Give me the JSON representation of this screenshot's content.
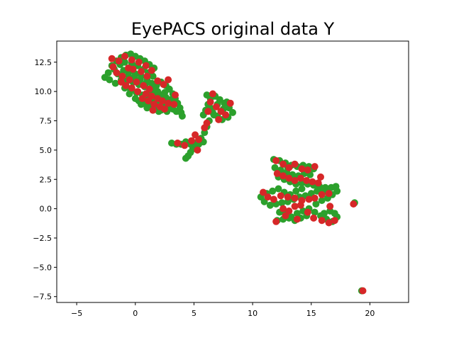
{
  "chart_data": {
    "type": "scatter",
    "title": "EyePACS original data Y",
    "xlabel": "",
    "ylabel": "",
    "xlim": [
      -6.7,
      23.3
    ],
    "ylim": [
      -8.0,
      14.3
    ],
    "x_ticks": [
      -5,
      0,
      5,
      10,
      15,
      20
    ],
    "x_tick_labels": [
      "−5",
      "0",
      "5",
      "10",
      "15",
      "20"
    ],
    "y_ticks": [
      -7.5,
      -5.0,
      -2.5,
      0.0,
      2.5,
      5.0,
      7.5,
      10.0,
      12.5
    ],
    "y_tick_labels": [
      "−7.5",
      "−5.0",
      "−2.5",
      "0.0",
      "2.5",
      "5.0",
      "7.5",
      "10.0",
      "12.5"
    ],
    "grid": false,
    "legend": "none",
    "colors": {
      "green": "#2ca02c",
      "red": "#d62728"
    },
    "series": [
      {
        "color": "green",
        "points": [
          [
            -2.6,
            11.2
          ],
          [
            -2.3,
            11.6
          ],
          [
            -2.0,
            12.2
          ],
          [
            -1.6,
            12.6
          ],
          [
            -1.2,
            12.9
          ],
          [
            -0.8,
            13.1
          ],
          [
            -0.4,
            13.2
          ],
          [
            0.0,
            13.0
          ],
          [
            0.4,
            12.8
          ],
          [
            0.8,
            12.6
          ],
          [
            1.2,
            12.3
          ],
          [
            1.6,
            12.0
          ],
          [
            -1.8,
            11.9
          ],
          [
            -1.3,
            12.3
          ],
          [
            -0.9,
            12.5
          ],
          [
            -0.3,
            12.4
          ],
          [
            0.2,
            12.2
          ],
          [
            0.7,
            11.9
          ],
          [
            1.1,
            11.6
          ],
          [
            1.5,
            11.3
          ],
          [
            -1.5,
            11.5
          ],
          [
            -1.0,
            11.8
          ],
          [
            -0.5,
            11.7
          ],
          [
            0.0,
            11.5
          ],
          [
            0.5,
            11.3
          ],
          [
            1.0,
            11.0
          ],
          [
            1.4,
            10.7
          ],
          [
            1.8,
            10.5
          ],
          [
            2.2,
            10.8
          ],
          [
            2.6,
            10.5
          ],
          [
            -1.2,
            11.0
          ],
          [
            -0.7,
            10.9
          ],
          [
            -0.2,
            10.8
          ],
          [
            0.3,
            10.6
          ],
          [
            0.8,
            10.4
          ],
          [
            1.3,
            10.1
          ],
          [
            1.7,
            9.9
          ],
          [
            2.1,
            9.7
          ],
          [
            2.5,
            9.9
          ],
          [
            2.9,
            10.2
          ],
          [
            3.2,
            9.8
          ],
          [
            3.4,
            9.4
          ],
          [
            3.6,
            9.0
          ],
          [
            3.8,
            8.6
          ],
          [
            3.9,
            8.2
          ],
          [
            4.0,
            7.9
          ],
          [
            -0.9,
            10.3
          ],
          [
            -0.4,
            10.1
          ],
          [
            0.1,
            9.9
          ],
          [
            0.6,
            9.7
          ],
          [
            1.1,
            9.5
          ],
          [
            1.6,
            9.3
          ],
          [
            2.0,
            9.1
          ],
          [
            2.4,
            8.9
          ],
          [
            2.8,
            8.7
          ],
          [
            3.2,
            8.5
          ],
          [
            0.3,
            9.2
          ],
          [
            0.8,
            9.0
          ],
          [
            1.3,
            8.8
          ],
          [
            1.8,
            8.6
          ],
          [
            2.2,
            8.4
          ],
          [
            2.7,
            8.3
          ],
          [
            3.1,
            8.6
          ],
          [
            3.5,
            8.3
          ],
          [
            -0.5,
            9.8
          ],
          [
            0.0,
            9.4
          ],
          [
            0.5,
            8.9
          ],
          [
            1.0,
            8.6
          ],
          [
            1.5,
            8.4
          ],
          [
            2.0,
            8.3
          ],
          [
            -2.2,
            11.0
          ],
          [
            -1.7,
            10.7
          ],
          [
            3.0,
            9.3
          ],
          [
            2.6,
            9.5
          ],
          [
            1.9,
            10.0
          ],
          [
            1.5,
            10.3
          ],
          [
            0.9,
            10.7
          ],
          [
            0.4,
            11.0
          ],
          [
            -0.1,
            11.2
          ],
          [
            -0.6,
            11.4
          ],
          [
            3.1,
            5.6
          ],
          [
            3.5,
            5.5
          ],
          [
            3.9,
            5.5
          ],
          [
            4.3,
            5.7
          ],
          [
            4.7,
            5.5
          ],
          [
            5.0,
            5.3
          ],
          [
            5.4,
            5.5
          ],
          [
            5.8,
            5.7
          ],
          [
            4.3,
            4.3
          ],
          [
            4.5,
            4.5
          ],
          [
            4.7,
            4.8
          ],
          [
            4.9,
            5.1
          ],
          [
            5.2,
            5.6
          ],
          [
            5.6,
            6.0
          ],
          [
            5.9,
            6.5
          ],
          [
            6.1,
            7.0
          ],
          [
            6.3,
            7.5
          ],
          [
            5.8,
            8.0
          ],
          [
            6.0,
            8.4
          ],
          [
            6.2,
            8.9
          ],
          [
            6.4,
            9.4
          ],
          [
            6.8,
            9.6
          ],
          [
            7.2,
            9.3
          ],
          [
            7.6,
            9.0
          ],
          [
            8.0,
            8.6
          ],
          [
            8.3,
            8.2
          ],
          [
            7.9,
            7.8
          ],
          [
            7.4,
            7.6
          ],
          [
            7.0,
            7.9
          ],
          [
            6.6,
            8.2
          ],
          [
            6.4,
            8.6
          ],
          [
            7.0,
            8.9
          ],
          [
            7.5,
            8.5
          ],
          [
            6.1,
            9.7
          ],
          [
            6.7,
            8.0
          ],
          [
            7.8,
            9.1
          ],
          [
            11.8,
            4.2
          ],
          [
            12.3,
            4.1
          ],
          [
            12.8,
            3.9
          ],
          [
            13.3,
            3.7
          ],
          [
            13.8,
            3.6
          ],
          [
            14.3,
            3.7
          ],
          [
            14.8,
            3.6
          ],
          [
            15.2,
            3.4
          ],
          [
            11.9,
            3.5
          ],
          [
            12.4,
            3.3
          ],
          [
            12.9,
            3.1
          ],
          [
            13.4,
            2.9
          ],
          [
            13.9,
            2.8
          ],
          [
            14.4,
            3.0
          ],
          [
            14.9,
            2.9
          ],
          [
            12.2,
            2.7
          ],
          [
            12.7,
            2.5
          ],
          [
            13.2,
            2.3
          ],
          [
            13.7,
            2.1
          ],
          [
            14.2,
            2.2
          ],
          [
            14.7,
            2.1
          ],
          [
            15.2,
            2.0
          ],
          [
            15.7,
            1.9
          ],
          [
            16.2,
            1.8
          ],
          [
            16.7,
            1.8
          ],
          [
            17.1,
            1.9
          ],
          [
            17.2,
            1.5
          ],
          [
            16.8,
            1.2
          ],
          [
            16.4,
            1.4
          ],
          [
            16.0,
            1.6
          ],
          [
            15.5,
            1.5
          ],
          [
            15.0,
            1.3
          ],
          [
            14.5,
            1.1
          ],
          [
            14.0,
            1.0
          ],
          [
            13.5,
            0.8
          ],
          [
            13.0,
            0.6
          ],
          [
            12.5,
            0.5
          ],
          [
            12.0,
            0.4
          ],
          [
            11.5,
            0.3
          ],
          [
            11.0,
            0.6
          ],
          [
            10.7,
            1.0
          ],
          [
            11.2,
            1.3
          ],
          [
            11.7,
            1.5
          ],
          [
            12.2,
            1.7
          ],
          [
            12.7,
            1.4
          ],
          [
            13.2,
            1.2
          ],
          [
            13.7,
            1.5
          ],
          [
            14.2,
            1.7
          ],
          [
            12.3,
            -0.3
          ],
          [
            12.8,
            -0.5
          ],
          [
            13.3,
            -0.7
          ],
          [
            13.8,
            -0.4
          ],
          [
            14.3,
            -0.2
          ],
          [
            14.8,
            0.0
          ],
          [
            15.3,
            -0.3
          ],
          [
            15.8,
            -0.6
          ],
          [
            16.3,
            -0.9
          ],
          [
            16.8,
            -1.1
          ],
          [
            17.2,
            -0.7
          ],
          [
            17.0,
            -0.4
          ],
          [
            16.6,
            -0.2
          ],
          [
            12.1,
            -1.0
          ],
          [
            12.6,
            -0.9
          ],
          [
            13.1,
            -0.8
          ],
          [
            13.6,
            -1.0
          ],
          [
            14.1,
            -0.8
          ],
          [
            14.6,
            -0.6
          ],
          [
            16.1,
            -0.4
          ],
          [
            15.4,
            0.4
          ],
          [
            15.9,
            0.7
          ],
          [
            16.4,
            0.9
          ],
          [
            13.0,
            3.5
          ],
          [
            18.7,
            0.5
          ],
          [
            19.3,
            -7.0
          ]
        ]
      },
      {
        "color": "red",
        "points": [
          [
            -2.0,
            12.8
          ],
          [
            -1.4,
            12.6
          ],
          [
            -0.9,
            13.0
          ],
          [
            -0.3,
            12.7
          ],
          [
            0.3,
            12.5
          ],
          [
            0.9,
            12.2
          ],
          [
            1.4,
            11.8
          ],
          [
            -1.6,
            11.6
          ],
          [
            -1.1,
            11.3
          ],
          [
            -0.5,
            11.0
          ],
          [
            0.1,
            10.8
          ],
          [
            0.7,
            10.5
          ],
          [
            1.2,
            10.2
          ],
          [
            1.9,
            10.9
          ],
          [
            2.4,
            10.6
          ],
          [
            2.8,
            11.0
          ],
          [
            -0.8,
            10.5
          ],
          [
            -0.3,
            10.3
          ],
          [
            0.2,
            10.0
          ],
          [
            0.9,
            9.8
          ],
          [
            1.4,
            9.6
          ],
          [
            1.9,
            9.4
          ],
          [
            2.3,
            9.2
          ],
          [
            2.8,
            9.0
          ],
          [
            3.3,
            8.9
          ],
          [
            0.6,
            9.4
          ],
          [
            1.1,
            9.2
          ],
          [
            1.6,
            8.9
          ],
          [
            2.1,
            8.7
          ],
          [
            2.5,
            8.5
          ],
          [
            1.5,
            8.4
          ],
          [
            3.4,
            9.7
          ],
          [
            -1.9,
            12.1
          ],
          [
            -0.6,
            12.0
          ],
          [
            0.5,
            11.7
          ],
          [
            1.0,
            11.3
          ],
          [
            -0.2,
            11.9
          ],
          [
            -1.2,
            10.8
          ],
          [
            3.6,
            5.6
          ],
          [
            4.2,
            5.4
          ],
          [
            4.8,
            5.8
          ],
          [
            5.1,
            6.3
          ],
          [
            5.4,
            5.9
          ],
          [
            5.9,
            6.9
          ],
          [
            6.1,
            7.3
          ],
          [
            5.3,
            5.0
          ],
          [
            6.4,
            9.1
          ],
          [
            6.9,
            8.7
          ],
          [
            7.3,
            8.3
          ],
          [
            7.7,
            8.0
          ],
          [
            8.1,
            9.0
          ],
          [
            6.6,
            9.8
          ],
          [
            7.1,
            7.6
          ],
          [
            6.2,
            8.3
          ],
          [
            12.0,
            4.1
          ],
          [
            12.6,
            3.8
          ],
          [
            13.1,
            3.5
          ],
          [
            13.6,
            3.8
          ],
          [
            14.2,
            3.4
          ],
          [
            14.7,
            3.3
          ],
          [
            15.3,
            3.6
          ],
          [
            12.1,
            3.0
          ],
          [
            12.6,
            2.8
          ],
          [
            13.1,
            2.6
          ],
          [
            13.6,
            2.4
          ],
          [
            14.1,
            2.6
          ],
          [
            14.6,
            2.4
          ],
          [
            15.1,
            2.3
          ],
          [
            15.6,
            2.2
          ],
          [
            11.3,
            1.0
          ],
          [
            11.8,
            0.8
          ],
          [
            12.4,
            1.1
          ],
          [
            13.0,
            1.0
          ],
          [
            13.6,
            0.9
          ],
          [
            14.2,
            0.7
          ],
          [
            14.8,
            0.8
          ],
          [
            15.3,
            0.9
          ],
          [
            15.9,
            1.2
          ],
          [
            16.5,
            1.3
          ],
          [
            10.9,
            1.4
          ],
          [
            12.6,
            0.0
          ],
          [
            13.1,
            -0.2
          ],
          [
            13.6,
            0.2
          ],
          [
            14.1,
            0.3
          ],
          [
            14.7,
            -0.3
          ],
          [
            15.2,
            -0.8
          ],
          [
            15.9,
            -1.0
          ],
          [
            16.5,
            -1.2
          ],
          [
            17.0,
            -1.0
          ],
          [
            12.0,
            -1.1
          ],
          [
            12.8,
            -0.6
          ],
          [
            13.8,
            -0.9
          ],
          [
            16.6,
            0.2
          ],
          [
            15.8,
            2.7
          ],
          [
            18.6,
            0.4
          ],
          [
            19.4,
            -7.0
          ]
        ]
      }
    ]
  }
}
